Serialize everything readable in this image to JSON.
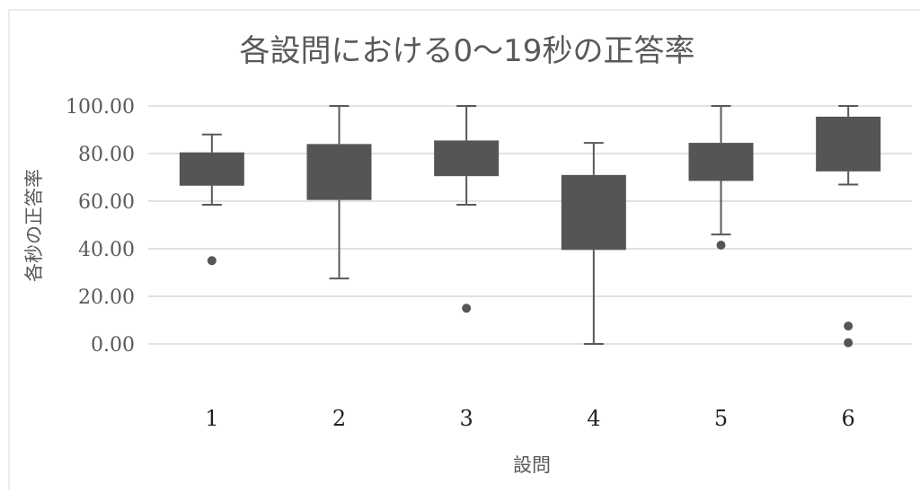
{
  "chart_data": {
    "type": "box",
    "title": "各設問における0〜19秒の正答率",
    "xlabel": "設問",
    "ylabel": "各秒の正答率",
    "ylim": [
      0,
      100
    ],
    "y_ticks": [
      "0.00",
      "20.00",
      "40.00",
      "60.00",
      "80.00",
      "100.00"
    ],
    "grid": true,
    "categories": [
      "1",
      "2",
      "3",
      "4",
      "5",
      "6"
    ],
    "boxes": [
      {
        "category": "1",
        "whisker_low": 58.5,
        "q1": 66.5,
        "q3": 80.5,
        "whisker_high": 88,
        "outliers": [
          35
        ]
      },
      {
        "category": "2",
        "whisker_low": 27.5,
        "q1": 60.5,
        "q3": 84,
        "whisker_high": 100,
        "outliers": []
      },
      {
        "category": "3",
        "whisker_low": 58.5,
        "q1": 70.5,
        "q3": 85.5,
        "whisker_high": 100,
        "outliers": [
          15
        ]
      },
      {
        "category": "4",
        "whisker_low": 0,
        "q1": 39.5,
        "q3": 71,
        "whisker_high": 84.5,
        "outliers": []
      },
      {
        "category": "5",
        "whisker_low": 46,
        "q1": 68.5,
        "q3": 84.5,
        "whisker_high": 100,
        "outliers": [
          41.5
        ]
      },
      {
        "category": "6",
        "whisker_low": 67,
        "q1": 72.5,
        "q3": 95.5,
        "whisker_high": 100,
        "outliers": [
          7.5,
          0.5
        ]
      }
    ],
    "colors": {
      "box": "#555555",
      "whisker": "#595959",
      "gridline": "#d9d9d9",
      "text": "#595959",
      "frame": "#d9d9d9"
    }
  }
}
